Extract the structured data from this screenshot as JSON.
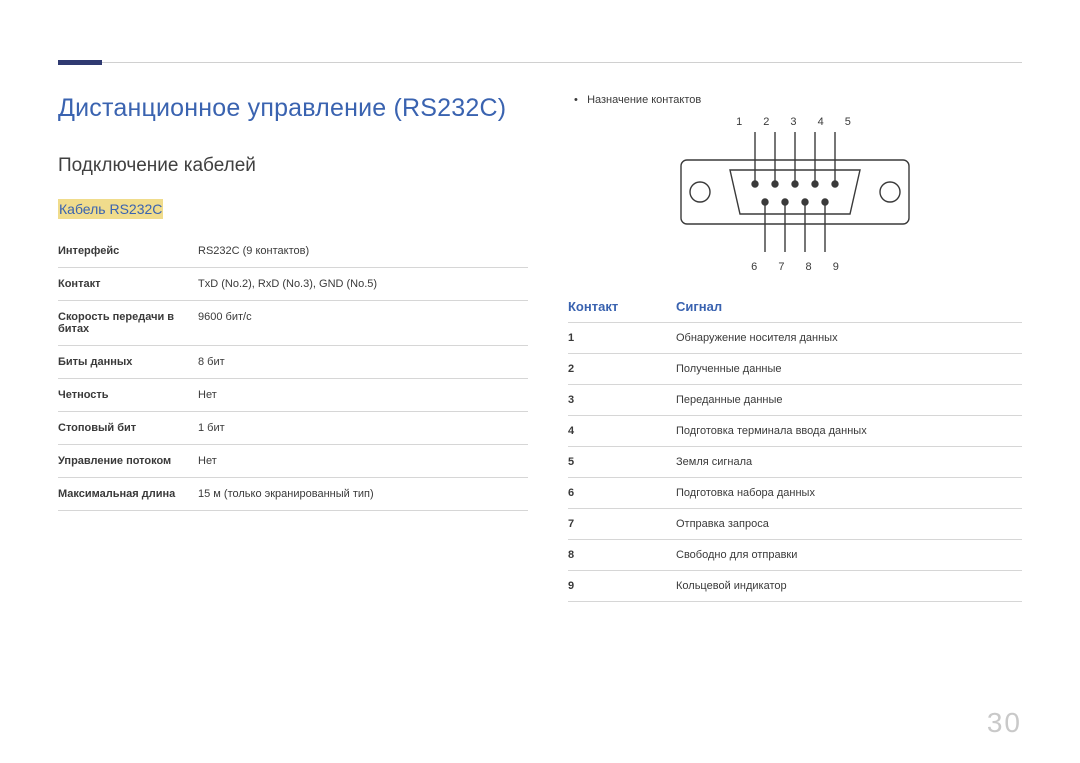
{
  "header": {
    "accent_color": "#2f3a71",
    "rule_color": "#d0d0d0"
  },
  "title": "Дистанционное управление (RS232C)",
  "subtitle": "Подключение кабелей",
  "cable_heading": "Кабель RS232C",
  "colors": {
    "heading": "#3a63b0",
    "highlight_bg": "#f0dc8c",
    "text": "#3a3a3a",
    "border": "#d6d6d6",
    "page_num": "#c9c9c9"
  },
  "specs": [
    {
      "key": "Интерфейс",
      "val": "RS232C (9 контактов)"
    },
    {
      "key": "Контакт",
      "val": "TxD (No.2), RxD (No.3), GND (No.5)"
    },
    {
      "key": "Скорость передачи в битах",
      "val": "9600 бит/с"
    },
    {
      "key": "Биты данных",
      "val": "8 бит"
    },
    {
      "key": "Четность",
      "val": "Нет"
    },
    {
      "key": "Стоповый бит",
      "val": "1 бит"
    },
    {
      "key": "Управление потоком",
      "val": "Нет"
    },
    {
      "key": "Максимальная длина",
      "val": "15 м (только экранированный тип)"
    }
  ],
  "right": {
    "bullet": "Назначение контактов",
    "top_pins": "1 2 3 4 5",
    "bottom_pins": "6 7 8 9",
    "diagram": {
      "outer_stroke": "#3a3a3a",
      "hole_fill": "#3a3a3a"
    },
    "signal_header": {
      "c1": "Контакт",
      "c2": "Сигнал"
    },
    "signals": [
      {
        "n": "1",
        "s": "Обнаружение носителя данных"
      },
      {
        "n": "2",
        "s": "Полученные данные"
      },
      {
        "n": "3",
        "s": "Переданные данные"
      },
      {
        "n": "4",
        "s": "Подготовка терминала ввода данных"
      },
      {
        "n": "5",
        "s": "Земля сигнала"
      },
      {
        "n": "6",
        "s": "Подготовка набора данных"
      },
      {
        "n": "7",
        "s": "Отправка запроса"
      },
      {
        "n": "8",
        "s": "Свободно для отправки"
      },
      {
        "n": "9",
        "s": "Кольцевой индикатор"
      }
    ]
  },
  "page_number": "30"
}
